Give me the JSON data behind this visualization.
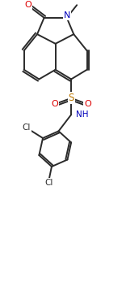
{
  "bg_color": "#ffffff",
  "line_color": "#2a2a2a",
  "atom_colors": {
    "O": "#dd0000",
    "N": "#0000bb",
    "S": "#bb7700",
    "Cl": "#2a2a2a",
    "C": "#2a2a2a"
  },
  "figsize": [
    1.56,
    3.68
  ],
  "dpi": 100
}
